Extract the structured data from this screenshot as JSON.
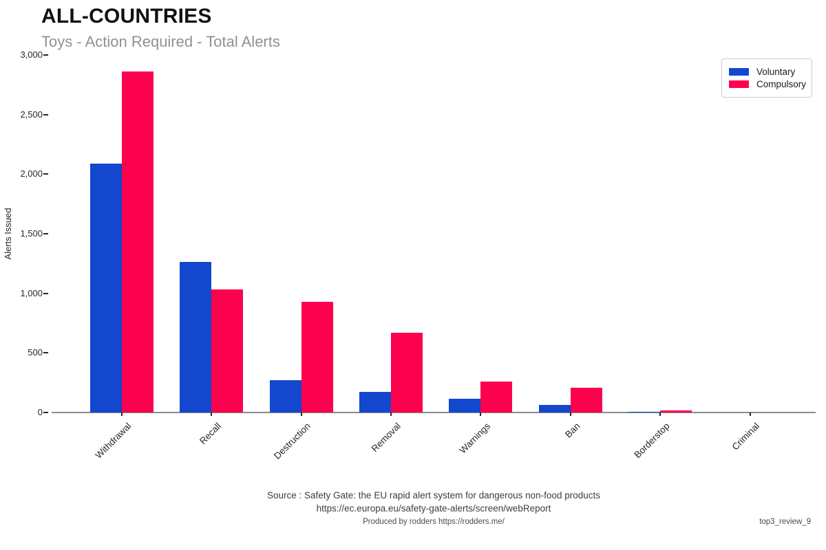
{
  "header": {
    "title": "ALL-COUNTRIES",
    "subtitle": "Toys - Action Required - Total Alerts"
  },
  "chart_data": {
    "type": "bar",
    "title": "ALL-COUNTRIES",
    "subtitle": "Toys - Action Required - Total Alerts",
    "xlabel": "",
    "ylabel": "Alerts Issued",
    "ylim": [
      0,
      3000
    ],
    "yticks": [
      0,
      500,
      1000,
      1500,
      2000,
      2500,
      3000
    ],
    "ytick_labels": [
      "0",
      "500",
      "1,000",
      "1,500",
      "2,000",
      "2,500",
      "3,000"
    ],
    "categories": [
      "Withdrawal",
      "Recall",
      "Destruction",
      "Removal",
      "Warnings",
      "Ban",
      "Borderstop",
      "Criminal"
    ],
    "series": [
      {
        "name": "Voluntary",
        "color": "#1347cd",
        "values": [
          2090,
          1265,
          270,
          175,
          115,
          65,
          8,
          0
        ]
      },
      {
        "name": "Compulsory",
        "color": "#fb014e",
        "values": [
          2860,
          1030,
          930,
          670,
          260,
          205,
          18,
          0
        ]
      }
    ],
    "grid": false,
    "legend_position": "top-right"
  },
  "footer": {
    "source_line1": "Source : Safety Gate: the EU rapid alert system for dangerous non-food products",
    "source_line2": "https://ec.europa.eu/safety-gate-alerts/screen/webReport",
    "produced_by": "Produced by rodders https://rodders.me/",
    "tag": "top3_review_9"
  }
}
